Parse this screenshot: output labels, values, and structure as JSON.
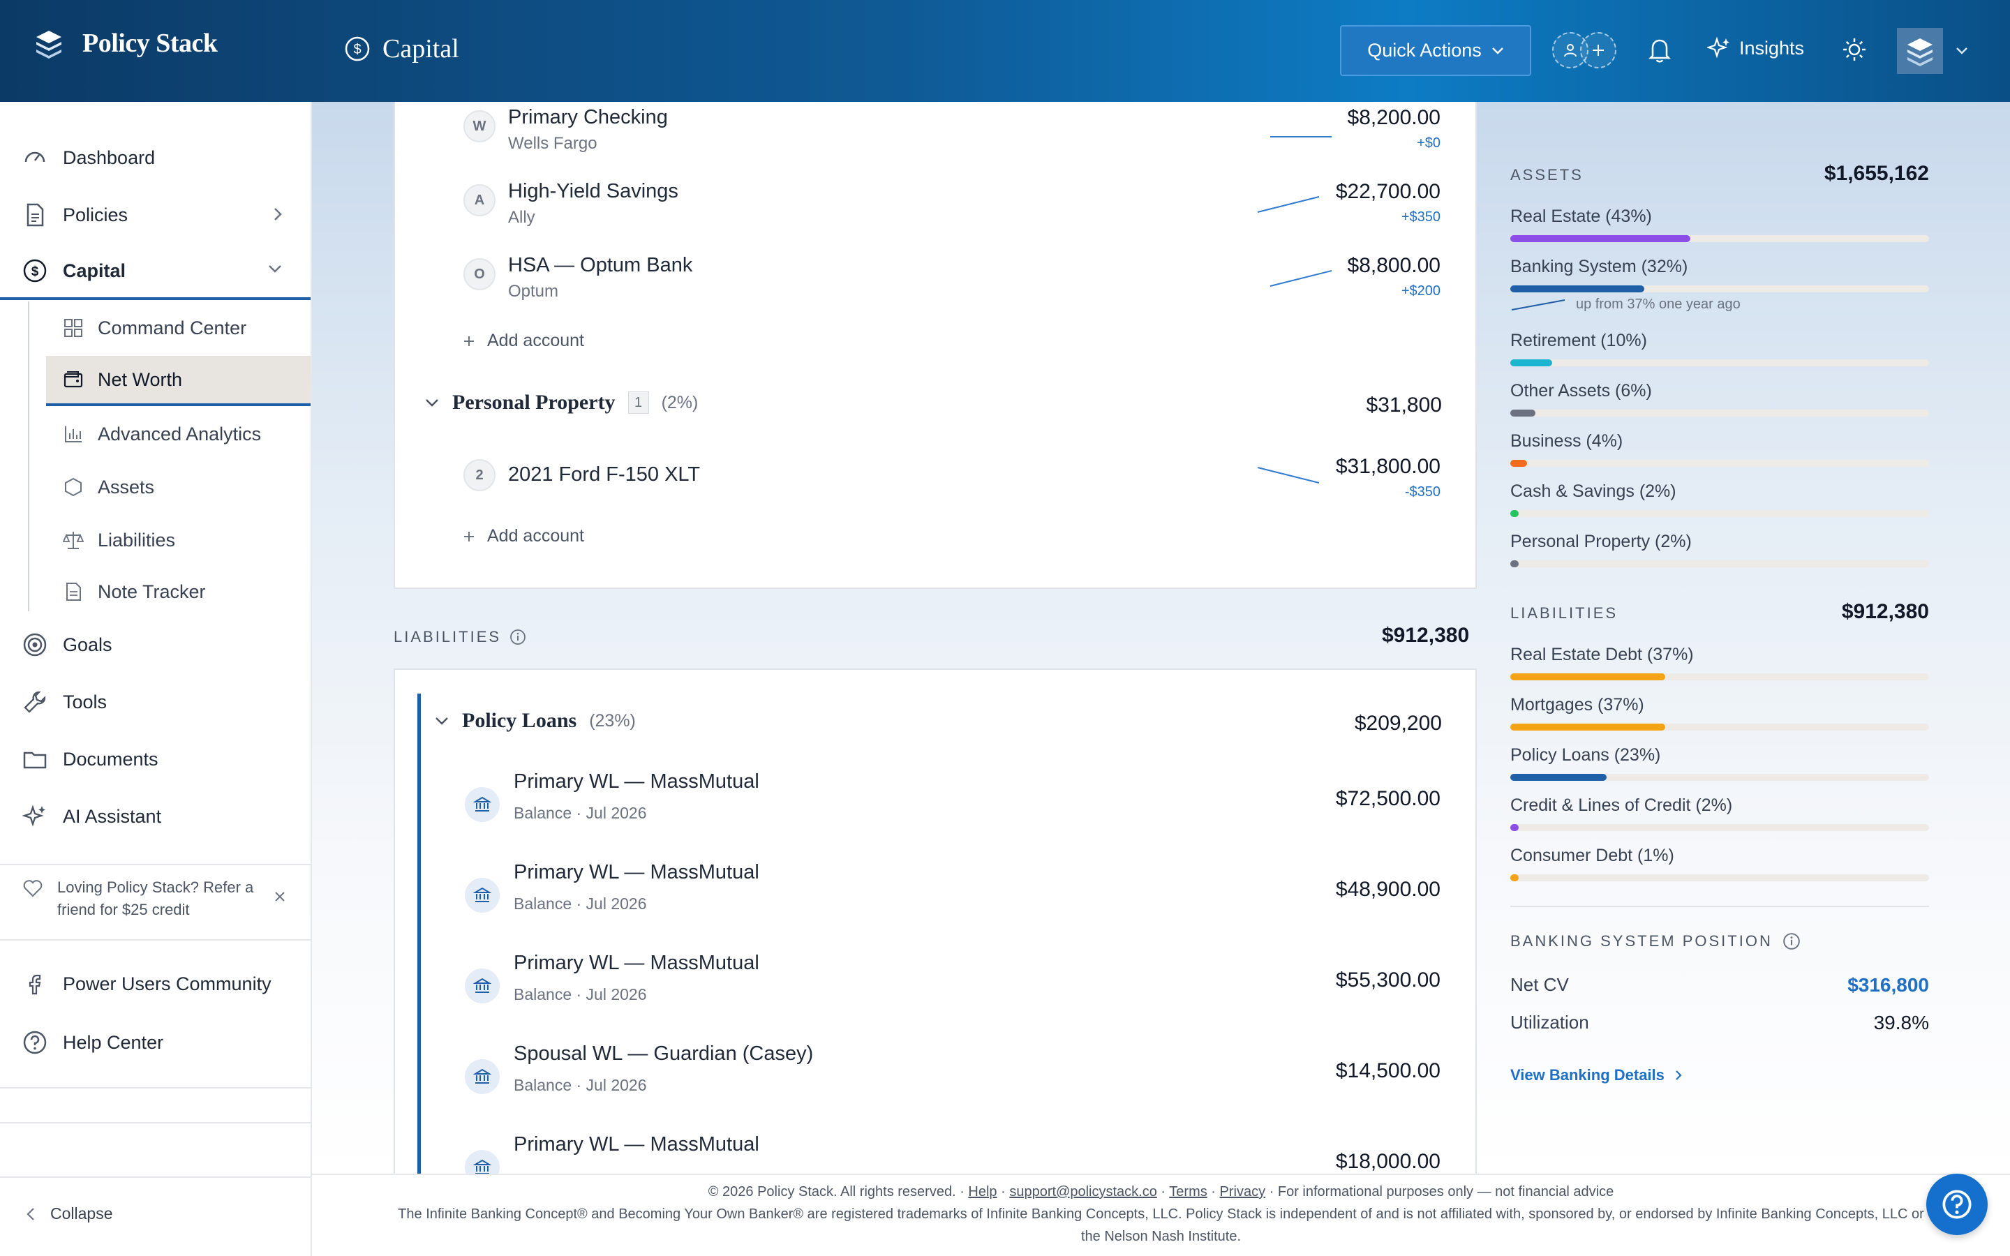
{
  "header": {
    "brand": "Policy Stack",
    "section": "Capital",
    "quick_actions": "Quick Actions",
    "insights": "Insights"
  },
  "sidebar": {
    "items": [
      {
        "label": "Dashboard",
        "icon": "gauge-icon"
      },
      {
        "label": "Policies",
        "icon": "document-icon"
      },
      {
        "label": "Capital",
        "icon": "dollar-circle-icon"
      }
    ],
    "sub_items": [
      {
        "label": "Command Center",
        "icon": "grid-icon"
      },
      {
        "label": "Net Worth",
        "icon": "wallet-icon"
      },
      {
        "label": "Advanced Analytics",
        "icon": "bar-chart-icon"
      },
      {
        "label": "Assets",
        "icon": "hexagon-icon"
      },
      {
        "label": "Liabilities",
        "icon": "scale-icon"
      },
      {
        "label": "Note Tracker",
        "icon": "note-icon"
      }
    ],
    "items2": [
      {
        "label": "Goals",
        "icon": "target-icon"
      },
      {
        "label": "Tools",
        "icon": "wrench-icon"
      },
      {
        "label": "Documents",
        "icon": "folder-icon"
      },
      {
        "label": "AI Assistant",
        "icon": "sparkle-icon"
      }
    ],
    "refer": "Loving Policy Stack? Refer a friend for $25 credit",
    "links": [
      {
        "label": "Power Users Community",
        "icon": "facebook-icon"
      },
      {
        "label": "Help Center",
        "icon": "help-circle-icon"
      }
    ],
    "collapse": "Collapse"
  },
  "accounts": [
    {
      "badge": "W",
      "name": "Primary Checking",
      "sub": "Wells Fargo",
      "amount": "$8,200.00",
      "change": "+$0"
    },
    {
      "badge": "A",
      "name": "High-Yield Savings",
      "sub": "Ally",
      "amount": "$22,700.00",
      "change": "+$350"
    },
    {
      "badge": "O",
      "name": "HSA — Optum Bank",
      "sub": "Optum",
      "amount": "$8,800.00",
      "change": "+$200"
    }
  ],
  "add_account": "Add account",
  "personal_property": {
    "title": "Personal Property",
    "count": "1",
    "pct": "(2%)",
    "total": "$31,800",
    "item": {
      "badge": "2",
      "name": "2021 Ford F-150 XLT",
      "amount": "$31,800.00",
      "change": "-$350"
    }
  },
  "liabilities": {
    "label": "LIABILITIES",
    "total": "$912,380",
    "group": {
      "title": "Policy Loans",
      "pct": "(23%)",
      "total": "$209,200"
    },
    "loans": [
      {
        "name": "Primary WL — MassMutual",
        "sub": "Balance · Jul 2026",
        "amount": "$72,500.00"
      },
      {
        "name": "Primary WL — MassMutual",
        "sub": "Balance · Jul 2026",
        "amount": "$48,900.00"
      },
      {
        "name": "Primary WL — MassMutual",
        "sub": "Balance · Jul 2026",
        "amount": "$55,300.00"
      },
      {
        "name": "Spousal WL — Guardian (Casey)",
        "sub": "Balance · Jul 2026",
        "amount": "$14,500.00"
      },
      {
        "name": "Primary WL — MassMutual",
        "sub": "",
        "amount": "$18,000.00"
      }
    ]
  },
  "right_panel": {
    "assets_label": "ASSETS",
    "assets_total": "$1,655,162",
    "assets": [
      {
        "label": "Real Estate (43%)",
        "pct": 43,
        "color": "#8b4fe8"
      },
      {
        "label": "Banking System (32%)",
        "pct": 32,
        "color": "#1f5fa8"
      },
      {
        "label": "Retirement (10%)",
        "pct": 10,
        "color": "#1bb5cf"
      },
      {
        "label": "Other Assets (6%)",
        "pct": 6,
        "color": "#6b7280"
      },
      {
        "label": "Business (4%)",
        "pct": 4,
        "color": "#f26b1d"
      },
      {
        "label": "Cash & Savings (2%)",
        "pct": 2,
        "color": "#22c55e"
      },
      {
        "label": "Personal Property (2%)",
        "pct": 2,
        "color": "#6b7280"
      }
    ],
    "banking_note": "up from 37% one year ago",
    "liabilities_label": "LIABILITIES",
    "liabilities_total": "$912,380",
    "liabilities": [
      {
        "label": "Real Estate Debt (37%)",
        "pct": 37,
        "color": "#f5a316"
      },
      {
        "label": "Mortgages (37%)",
        "pct": 37,
        "color": "#f5a316"
      },
      {
        "label": "Policy Loans (23%)",
        "pct": 23,
        "color": "#1f5fa8"
      },
      {
        "label": "Credit & Lines of Credit (2%)",
        "pct": 2,
        "color": "#8b4fe8"
      },
      {
        "label": "Consumer Debt (1%)",
        "pct": 1,
        "color": "#f5a316"
      }
    ],
    "bsp_label": "BANKING SYSTEM POSITION",
    "net_cv_label": "Net CV",
    "net_cv": "$316,800",
    "util_label": "Utilization",
    "util": "39.8%",
    "view_link": "View Banking Details"
  },
  "footer": {
    "copyright": "© 2026 Policy Stack. All rights reserved. ·",
    "help": "Help",
    "email": "support@policystack.co",
    "terms": "Terms",
    "privacy": "Privacy",
    "disclaimer": "· For informational purposes only — not financial advice",
    "trademark": "The Infinite Banking Concept® and Becoming Your Own Banker® are registered trademarks of Infinite Banking Concepts, LLC. Policy Stack is independent of and is not affiliated with, sponsored by, or endorsed by Infinite Banking Concepts, LLC or the Nelson Nash Institute."
  },
  "colors": {
    "accent": "#1f5fa8",
    "link": "#1f6fc4"
  }
}
